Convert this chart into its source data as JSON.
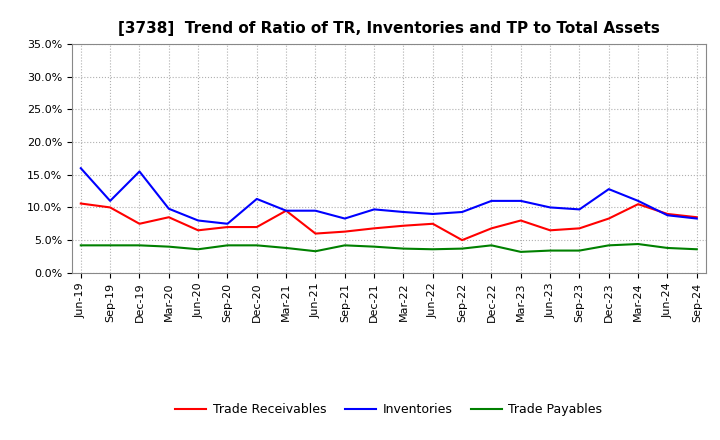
{
  "title": "[3738]  Trend of Ratio of TR, Inventories and TP to Total Assets",
  "labels": [
    "Jun-19",
    "Sep-19",
    "Dec-19",
    "Mar-20",
    "Jun-20",
    "Sep-20",
    "Dec-20",
    "Mar-21",
    "Jun-21",
    "Sep-21",
    "Dec-21",
    "Mar-22",
    "Jun-22",
    "Sep-22",
    "Dec-22",
    "Mar-23",
    "Jun-23",
    "Sep-23",
    "Dec-23",
    "Mar-24",
    "Jun-24",
    "Sep-24"
  ],
  "trade_receivables": [
    0.106,
    0.1,
    0.075,
    0.085,
    0.065,
    0.07,
    0.07,
    0.095,
    0.06,
    0.063,
    0.068,
    0.072,
    0.075,
    0.05,
    0.068,
    0.08,
    0.065,
    0.068,
    0.083,
    0.105,
    0.09,
    0.085
  ],
  "inventories": [
    0.16,
    0.11,
    0.155,
    0.098,
    0.08,
    0.075,
    0.113,
    0.095,
    0.095,
    0.083,
    0.097,
    0.093,
    0.09,
    0.093,
    0.11,
    0.11,
    0.1,
    0.097,
    0.128,
    0.11,
    0.088,
    0.083
  ],
  "trade_payables": [
    0.042,
    0.042,
    0.042,
    0.04,
    0.036,
    0.042,
    0.042,
    0.038,
    0.033,
    0.042,
    0.04,
    0.037,
    0.036,
    0.037,
    0.042,
    0.032,
    0.034,
    0.034,
    0.042,
    0.044,
    0.038,
    0.036
  ],
  "tr_color": "#ff0000",
  "inv_color": "#0000ff",
  "tp_color": "#008000",
  "ylim": [
    0.0,
    0.35
  ],
  "yticks": [
    0.0,
    0.05,
    0.1,
    0.15,
    0.2,
    0.25,
    0.3,
    0.35
  ],
  "background_color": "#ffffff",
  "grid_color": "#b0b0b0",
  "legend_labels": [
    "Trade Receivables",
    "Inventories",
    "Trade Payables"
  ],
  "title_fontsize": 11,
  "tick_fontsize": 8,
  "legend_fontsize": 9
}
